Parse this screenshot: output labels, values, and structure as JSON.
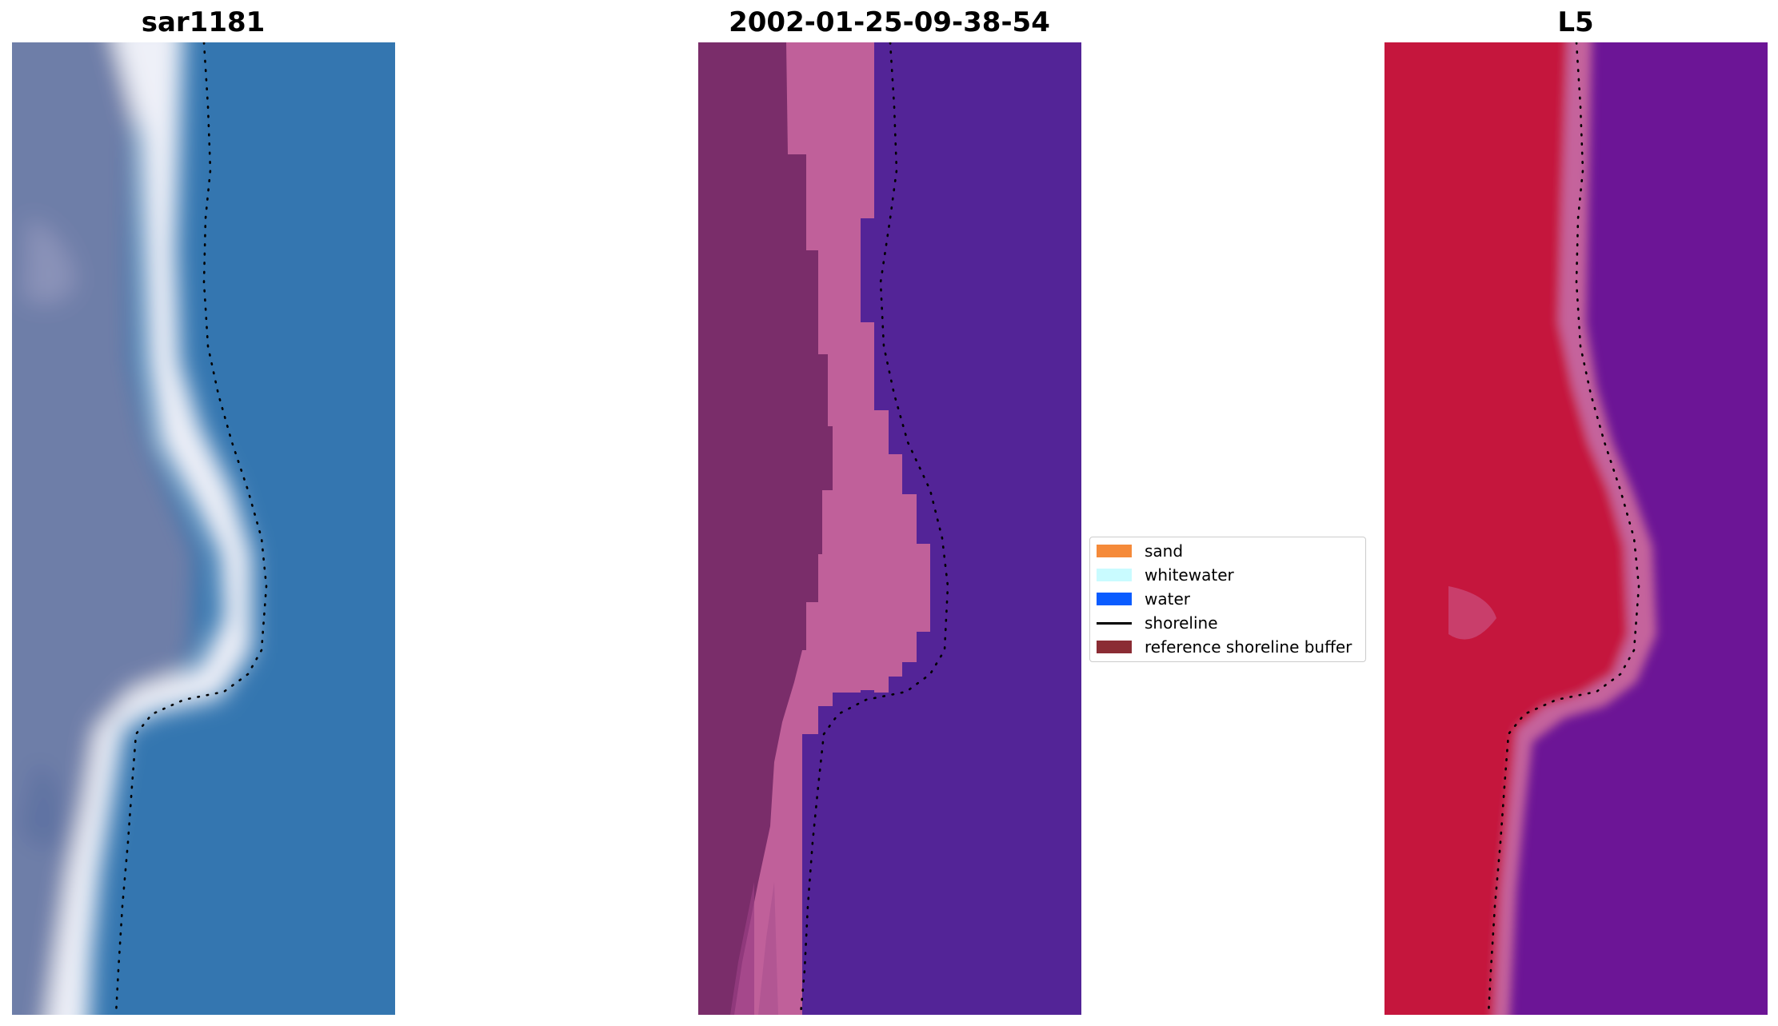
{
  "panels": [
    {
      "id": "rgb",
      "title": "sar1181"
    },
    {
      "id": "classified",
      "title": "2002-01-25-09-38-54"
    },
    {
      "id": "index",
      "title": "L5"
    }
  ],
  "legend": {
    "items": [
      {
        "label": "sand",
        "color": "#f58a3a",
        "kind": "patch"
      },
      {
        "label": "whitewater",
        "color": "#c9fbff",
        "kind": "patch"
      },
      {
        "label": "water",
        "color": "#0a5cff",
        "kind": "patch"
      },
      {
        "label": "shoreline",
        "color": "#000000",
        "kind": "line"
      },
      {
        "label": "reference shoreline buffer",
        "color": "#8b2c34",
        "kind": "patch"
      }
    ]
  },
  "colors": {
    "rgb_water": "#3476b0",
    "rgb_land": "#6f7fa6",
    "rgb_whitewater": "#f4f2f8",
    "class_sand": "#7a2d6a",
    "class_whitewater": "#c0609a",
    "class_water": "#532497",
    "index_land": "#c5163e",
    "index_transition": "#c5639c",
    "index_water": "#6c1596",
    "shoreline": "#000000"
  }
}
